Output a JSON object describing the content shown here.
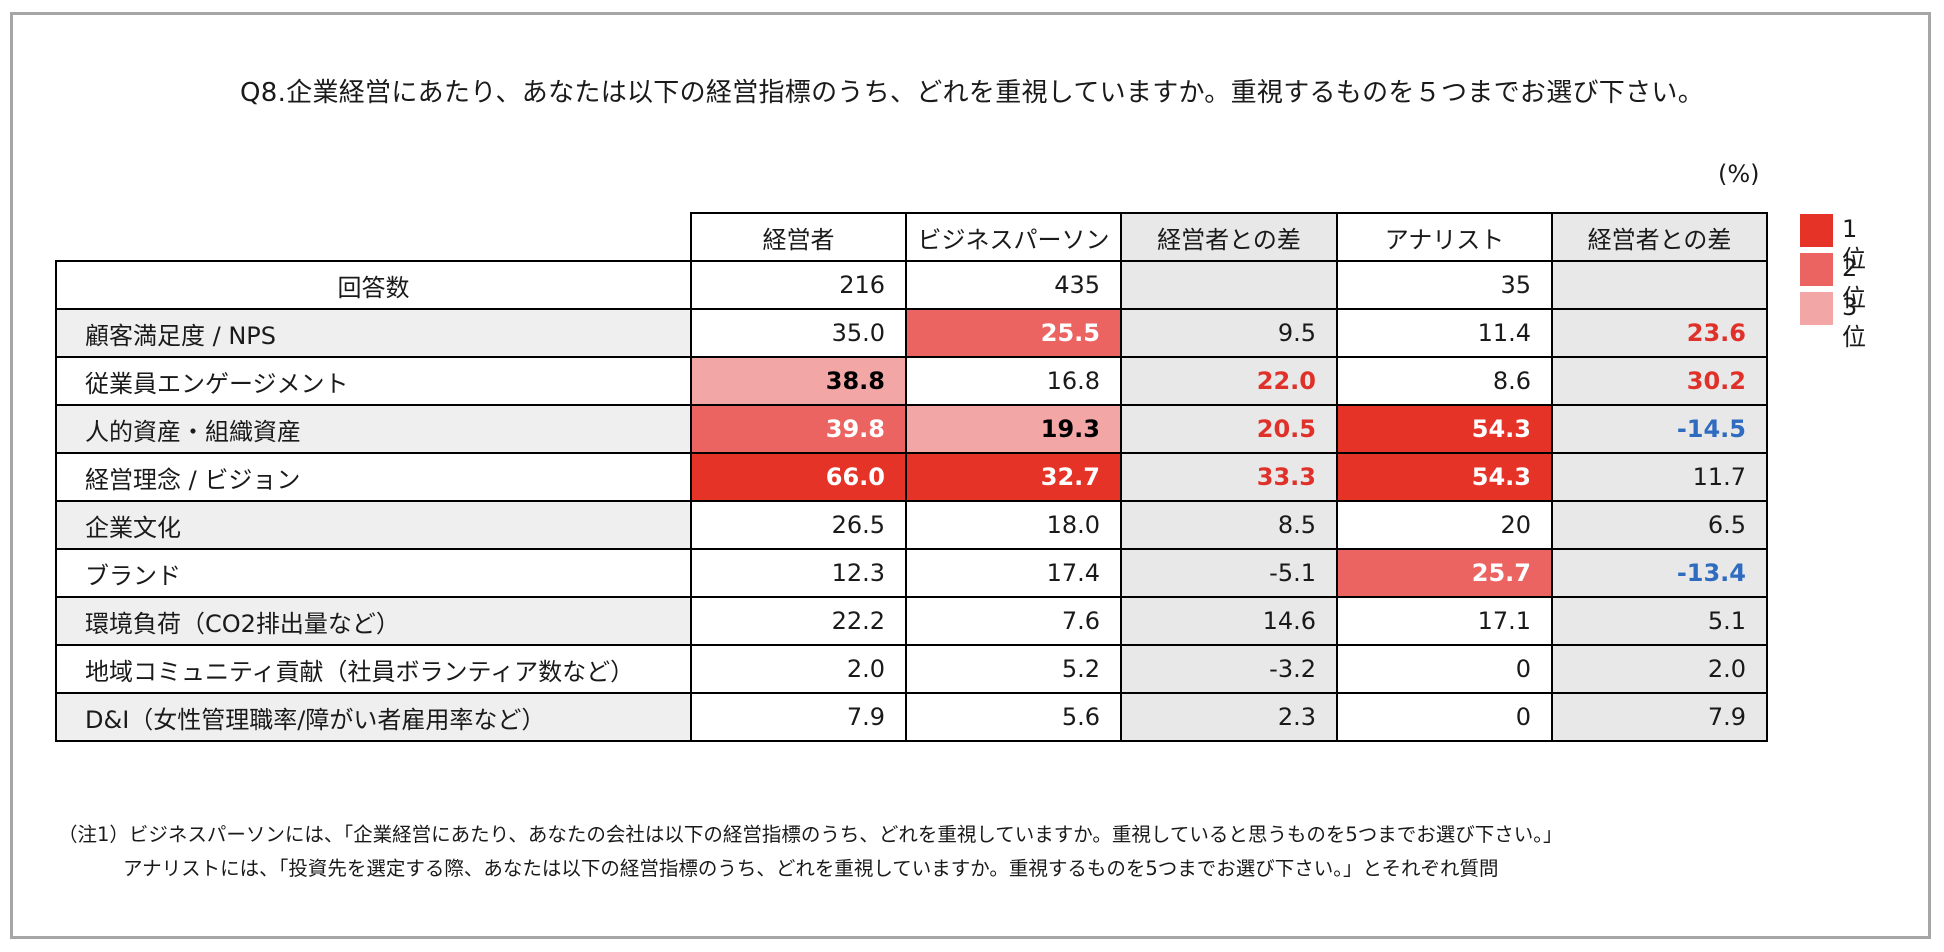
{
  "title": "Q8.企業経営にあたり、あなたは以下の経営指標のうち、どれを重視していますか。重視するものを５つまでお選び下さい。",
  "unit": "(%)",
  "colors": {
    "rank1": "#e53328",
    "rank2": "#ec6462",
    "rank3": "#f3a6a6",
    "positive": "#e0302a",
    "negative": "#2f6cc0",
    "grey": "#e8e8e8"
  },
  "table": {
    "headers": [
      "経営者",
      "ビジネスパーソン",
      "経営者との差",
      "アナリスト",
      "経営者との差"
    ],
    "count_row": {
      "label": "回答数",
      "values": [
        "216",
        "435",
        "",
        "35",
        ""
      ]
    },
    "rows": [
      {
        "label": "顧客満足度 / NPS",
        "values": [
          "35.0",
          "25.5",
          "9.5",
          "11.4",
          "23.6"
        ]
      },
      {
        "label": "従業員エンゲージメント",
        "values": [
          "38.8",
          "16.8",
          "22.0",
          "8.6",
          "30.2"
        ]
      },
      {
        "label": "人的資産・組織資産",
        "values": [
          "39.8",
          "19.3",
          "20.5",
          "54.3",
          "-14.5"
        ]
      },
      {
        "label": "経営理念 / ビジョン",
        "values": [
          "66.0",
          "32.7",
          "33.3",
          "54.3",
          "11.7"
        ]
      },
      {
        "label": "企業文化",
        "values": [
          "26.5",
          "18.0",
          "8.5",
          "20",
          "6.5"
        ]
      },
      {
        "label": "ブランド",
        "values": [
          "12.3",
          "17.4",
          "-5.1",
          "25.7",
          "-13.4"
        ]
      },
      {
        "label": "環境負荷（CO2排出量など）",
        "values": [
          "22.2",
          "7.6",
          "14.6",
          "17.1",
          "5.1"
        ]
      },
      {
        "label": "地域コミュニティ貢献（社員ボランティア数など）",
        "values": [
          "2.0",
          "5.2",
          "-3.2",
          "0",
          "2.0"
        ]
      },
      {
        "label": "D&I（女性管理職率/障がい者雇用率など）",
        "values": [
          "7.9",
          "5.6",
          "2.3",
          "0",
          "7.9"
        ]
      }
    ]
  },
  "legend": [
    "1位",
    "2位",
    "3位"
  ],
  "notes": [
    "（注1）ビジネスパーソンには、「企業経営にあたり、あなたの会社は以下の経営指標のうち、どれを重視していますか。重視していると思うものを5つまでお選び下さい。」",
    "アナリストには、「投資先を選定する際、あなたは以下の経営指標のうち、どれを重視していますか。重視するものを5つまでお選び下さい。」とそれぞれ質問"
  ]
}
